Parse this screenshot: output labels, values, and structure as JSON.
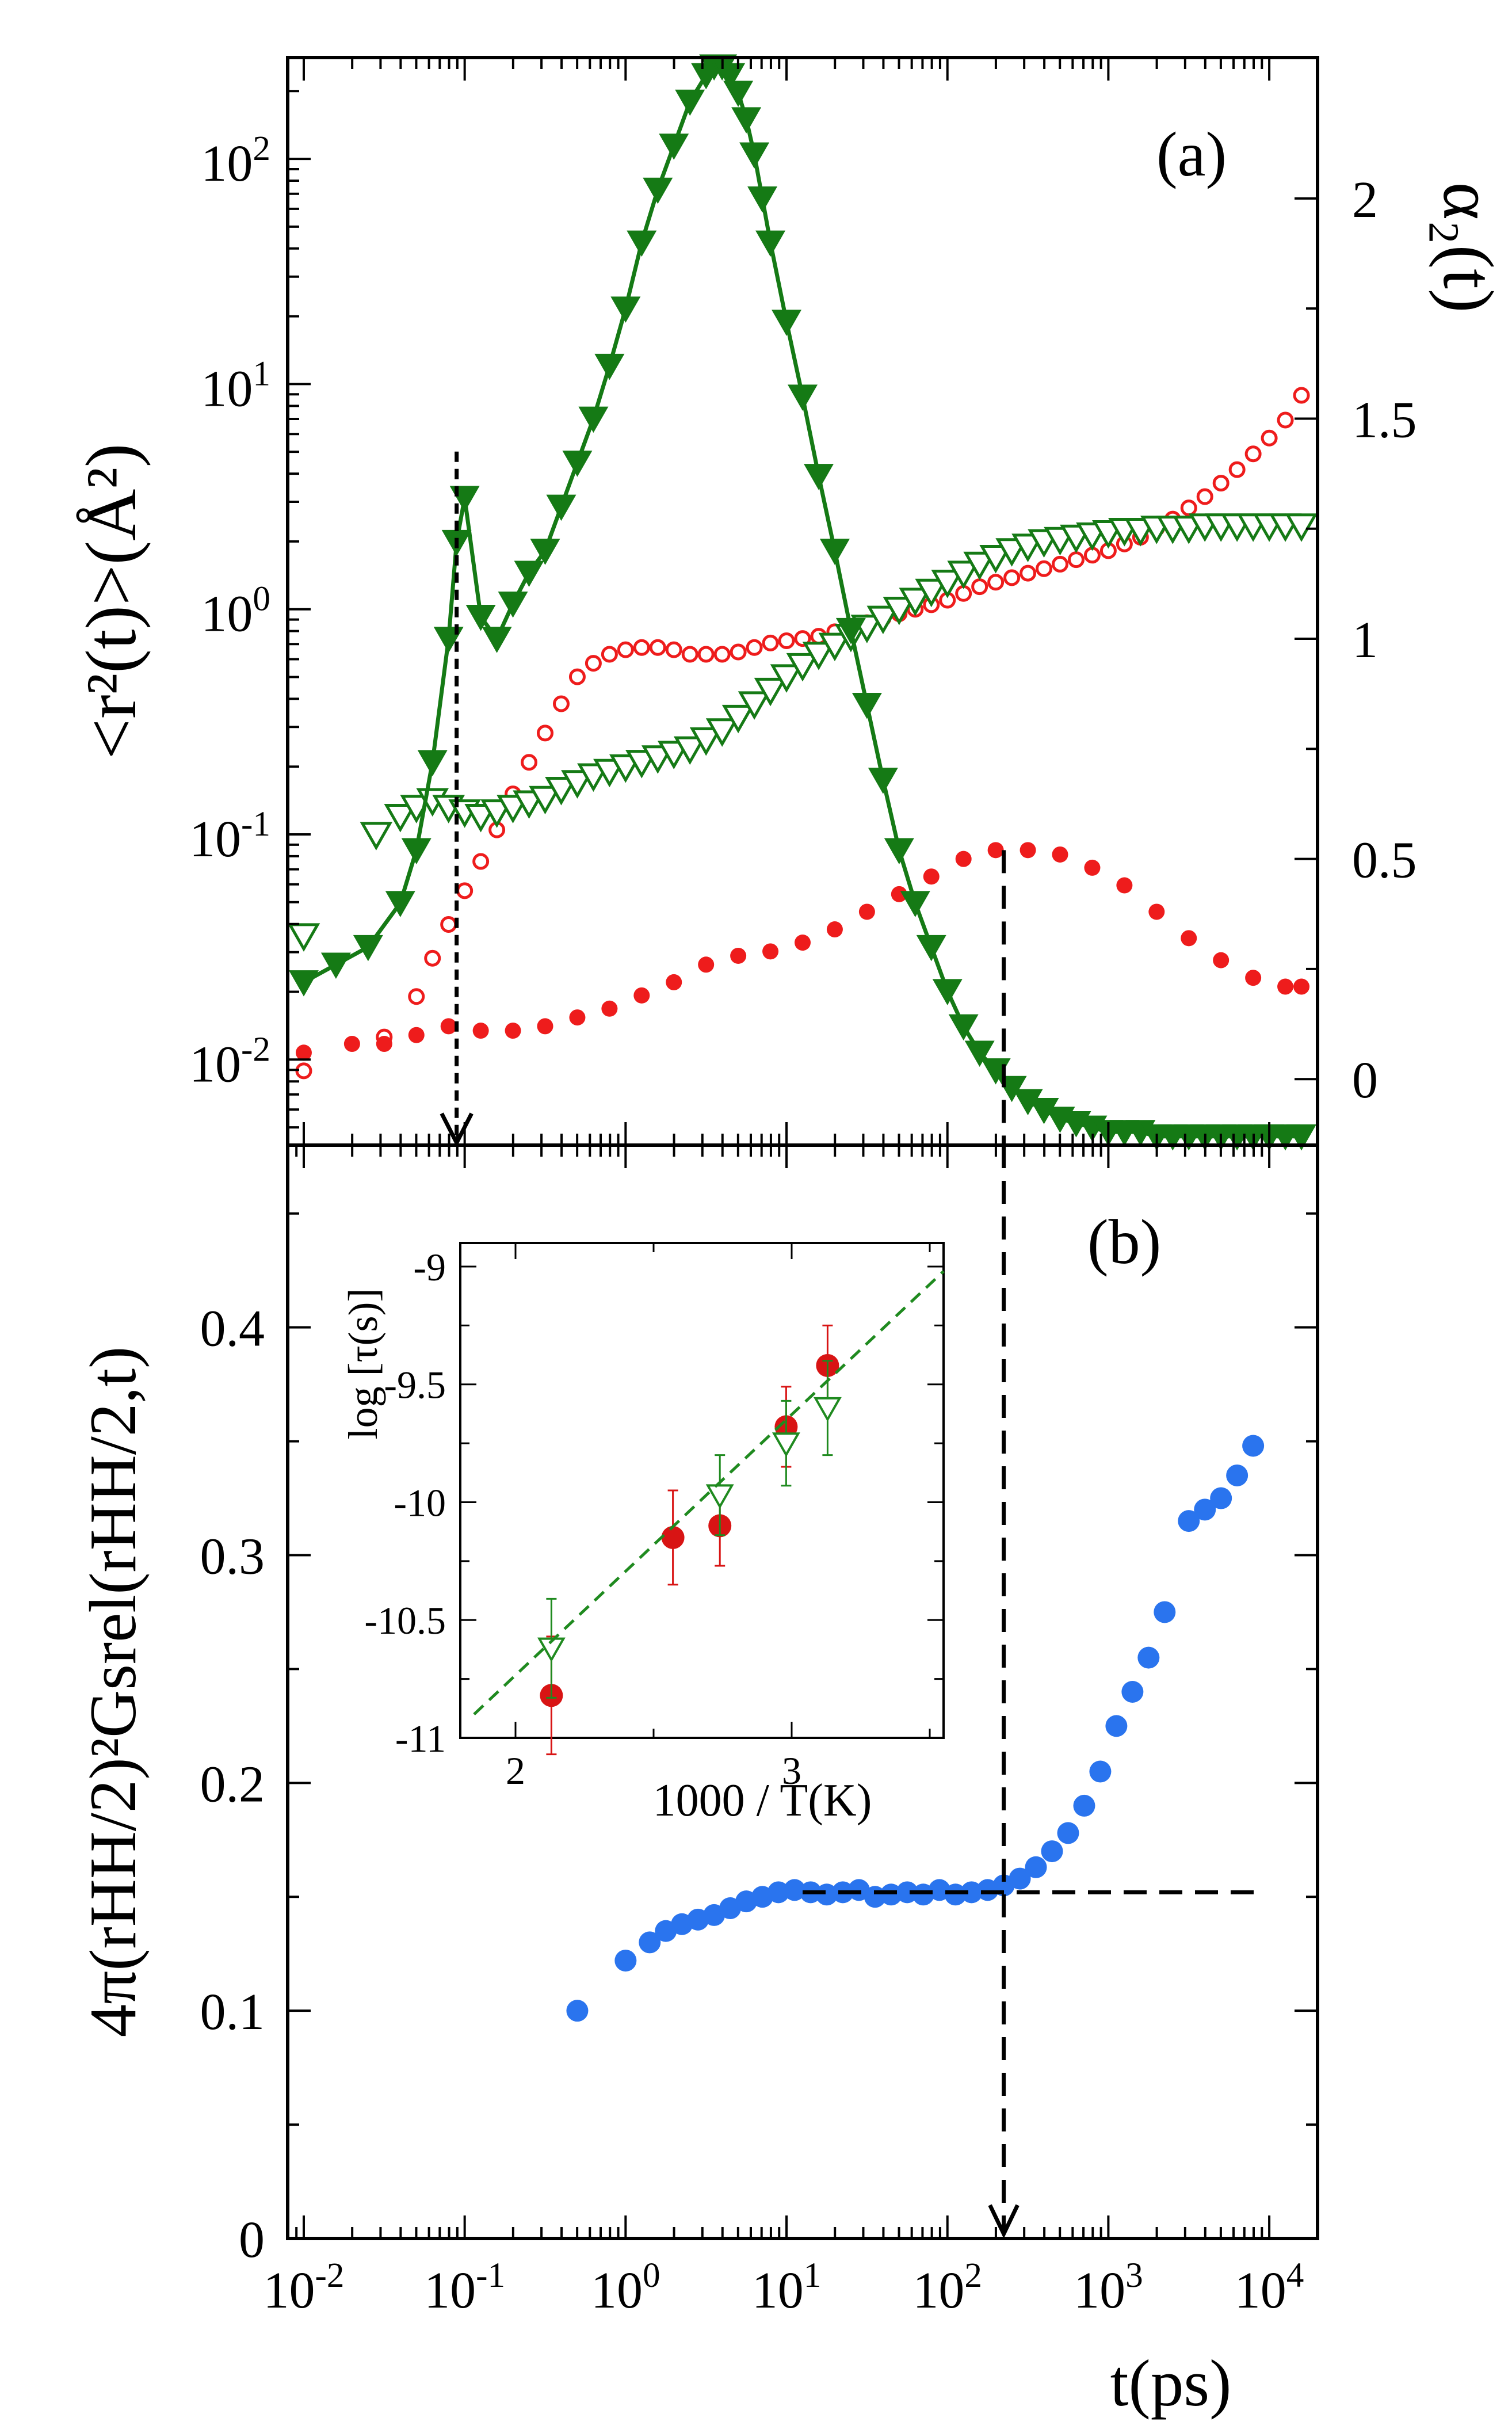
{
  "colors": {
    "red": "#ee1c1c",
    "green": "#157a15",
    "blue": "#2a74ee",
    "black": "#000000",
    "inset_red": "#d81414",
    "inset_green": "#1f8a1f"
  },
  "chart_data": [
    {
      "id": "a",
      "type": "scatter",
      "panel_label": "(a)",
      "xscale": "log",
      "xlim_log10": [
        -2.1,
        4.3
      ],
      "ylabel_left": "<r²(t)>(Å²)",
      "yscale_left": "log",
      "ylim_left_log10": [
        -2.38,
        2.45
      ],
      "ytick_labels_left": [
        "10-2",
        "10-1",
        "100",
        "101",
        "102"
      ],
      "ylabel_right": "α₂(t)",
      "ylim_right": [
        -0.15,
        2.32
      ],
      "ytick_labels_right": [
        "0",
        "0.5",
        "1",
        "1.5",
        "2"
      ],
      "series": [
        {
          "name": "MSD (open red circles)",
          "axis": "left",
          "marker": "open-circle",
          "color": "#ee1c1c",
          "x_log10": [
            -2.0,
            -1.5,
            -1.3,
            -1.2,
            -1.1,
            -1.0,
            -0.9,
            -0.8,
            -0.7,
            -0.6,
            -0.5,
            -0.4,
            -0.3,
            -0.2,
            -0.1,
            0.0,
            0.1,
            0.2,
            0.3,
            0.4,
            0.5,
            0.6,
            0.7,
            0.8,
            0.9,
            1.0,
            1.1,
            1.2,
            1.3,
            1.4,
            1.5,
            1.6,
            1.7,
            1.8,
            1.9,
            2.0,
            2.1,
            2.2,
            2.3,
            2.4,
            2.5,
            2.6,
            2.7,
            2.8,
            2.9,
            3.0,
            3.1,
            3.2,
            3.3,
            3.4,
            3.5,
            3.6,
            3.7,
            3.8,
            3.9,
            4.0,
            4.1,
            4.2
          ],
          "y_log10": [
            -2.05,
            -1.9,
            -1.72,
            -1.55,
            -1.4,
            -1.25,
            -1.12,
            -0.98,
            -0.82,
            -0.68,
            -0.55,
            -0.42,
            -0.3,
            -0.24,
            -0.2,
            -0.18,
            -0.17,
            -0.17,
            -0.18,
            -0.2,
            -0.2,
            -0.2,
            -0.19,
            -0.17,
            -0.15,
            -0.14,
            -0.13,
            -0.12,
            -0.1,
            -0.08,
            -0.06,
            -0.04,
            -0.02,
            0.0,
            0.02,
            0.04,
            0.07,
            0.1,
            0.12,
            0.14,
            0.16,
            0.18,
            0.2,
            0.22,
            0.24,
            0.26,
            0.29,
            0.32,
            0.36,
            0.4,
            0.45,
            0.5,
            0.56,
            0.62,
            0.69,
            0.76,
            0.84,
            0.95
          ]
        },
        {
          "name": "alpha2 (filled red circles)",
          "axis": "right",
          "marker": "filled-circle",
          "color": "#ee1c1c",
          "x_log10": [
            -2.0,
            -1.7,
            -1.5,
            -1.3,
            -1.1,
            -0.9,
            -0.7,
            -0.5,
            -0.3,
            -0.1,
            0.1,
            0.3,
            0.5,
            0.7,
            0.9,
            1.1,
            1.3,
            1.5,
            1.7,
            1.9,
            2.1,
            2.3,
            2.5,
            2.7,
            2.9,
            3.1,
            3.3,
            3.5,
            3.7,
            3.9,
            4.1,
            4.2
          ],
          "y": [
            0.06,
            0.08,
            0.08,
            0.1,
            0.12,
            0.11,
            0.11,
            0.12,
            0.14,
            0.16,
            0.19,
            0.22,
            0.26,
            0.28,
            0.29,
            0.31,
            0.34,
            0.38,
            0.42,
            0.46,
            0.5,
            0.52,
            0.52,
            0.51,
            0.48,
            0.44,
            0.38,
            0.32,
            0.27,
            0.23,
            0.21,
            0.21
          ]
        },
        {
          "name": "MSD (open green triangles)",
          "axis": "left",
          "marker": "open-triangle-down",
          "color": "#157a15",
          "x_log10": [
            -2.0,
            -1.55,
            -1.4,
            -1.3,
            -1.2,
            -1.1,
            -1.0,
            -0.9,
            -0.8,
            -0.7,
            -0.6,
            -0.5,
            -0.4,
            -0.3,
            -0.2,
            -0.1,
            0.0,
            0.1,
            0.2,
            0.3,
            0.4,
            0.5,
            0.6,
            0.7,
            0.8,
            0.9,
            1.0,
            1.1,
            1.2,
            1.3,
            1.4,
            1.5,
            1.6,
            1.7,
            1.8,
            1.9,
            2.0,
            2.1,
            2.2,
            2.3,
            2.4,
            2.5,
            2.6,
            2.7,
            2.8,
            2.9,
            3.0,
            3.1,
            3.2,
            3.3,
            3.4,
            3.5,
            3.6,
            3.7,
            3.8,
            3.9,
            4.0,
            4.1,
            4.2
          ],
          "y_log10": [
            -1.45,
            -1.0,
            -0.92,
            -0.88,
            -0.85,
            -0.88,
            -0.9,
            -0.92,
            -0.9,
            -0.88,
            -0.86,
            -0.84,
            -0.8,
            -0.77,
            -0.74,
            -0.72,
            -0.7,
            -0.68,
            -0.66,
            -0.64,
            -0.62,
            -0.58,
            -0.54,
            -0.48,
            -0.42,
            -0.36,
            -0.3,
            -0.25,
            -0.2,
            -0.16,
            -0.12,
            -0.08,
            -0.04,
            0.0,
            0.04,
            0.08,
            0.12,
            0.16,
            0.2,
            0.23,
            0.26,
            0.28,
            0.3,
            0.31,
            0.32,
            0.33,
            0.34,
            0.35,
            0.35,
            0.36,
            0.36,
            0.36,
            0.37,
            0.37,
            0.37,
            0.37,
            0.37,
            0.37,
            0.37
          ]
        },
        {
          "name": "alpha2 (filled green triangles, connected)",
          "axis": "right",
          "marker": "filled-triangle-down",
          "color": "#157a15",
          "line": true,
          "x_log10": [
            -2.0,
            -1.8,
            -1.6,
            -1.4,
            -1.3,
            -1.2,
            -1.1,
            -1.05,
            -1.0,
            -0.9,
            -0.8,
            -0.7,
            -0.6,
            -0.5,
            -0.4,
            -0.3,
            -0.2,
            -0.1,
            0.0,
            0.1,
            0.2,
            0.3,
            0.4,
            0.5,
            0.55,
            0.6,
            0.65,
            0.7,
            0.75,
            0.8,
            0.85,
            0.9,
            1.0,
            1.1,
            1.2,
            1.3,
            1.4,
            1.5,
            1.6,
            1.7,
            1.8,
            1.9,
            2.0,
            2.1,
            2.2,
            2.3,
            2.4,
            2.5,
            2.6,
            2.7,
            2.8,
            2.9,
            3.0,
            3.1,
            3.2,
            3.3,
            3.4,
            3.5,
            3.6,
            3.7,
            3.8,
            3.9,
            4.0,
            4.1,
            4.2
          ],
          "y": [
            0.22,
            0.26,
            0.3,
            0.4,
            0.52,
            0.72,
            1.0,
            1.22,
            1.32,
            1.05,
            1.0,
            1.08,
            1.15,
            1.2,
            1.3,
            1.4,
            1.5,
            1.62,
            1.75,
            1.9,
            2.02,
            2.12,
            2.22,
            2.28,
            2.3,
            2.3,
            2.28,
            2.24,
            2.18,
            2.1,
            2.0,
            1.9,
            1.72,
            1.55,
            1.37,
            1.2,
            1.02,
            0.85,
            0.68,
            0.52,
            0.4,
            0.3,
            0.2,
            0.12,
            0.06,
            0.02,
            -0.02,
            -0.05,
            -0.07,
            -0.09,
            -0.1,
            -0.11,
            -0.12,
            -0.12,
            -0.12,
            -0.13,
            -0.13,
            -0.13,
            -0.13,
            -0.13,
            -0.13,
            -0.13,
            -0.13,
            -0.13,
            -0.13
          ]
        }
      ],
      "annotations": [
        {
          "type": "vertical-dashed-arrow",
          "x_log10": -1.05,
          "from_y_log10": 0.7,
          "to_y_log10": -2.38,
          "style": "short-dash"
        },
        {
          "type": "vertical-dashed-line",
          "x_log10": 2.35
        }
      ]
    },
    {
      "id": "b",
      "type": "scatter",
      "panel_label": "(b)",
      "xscale": "log",
      "xlim_log10": [
        -2.1,
        4.3
      ],
      "xlabel": "t(ps)",
      "xtick_labels": [
        "10-2",
        "10-1",
        "100",
        "101",
        "102",
        "103",
        "104"
      ],
      "ylabel": "4π(rHH/2)²Gsrel(rHH/2,t)",
      "ylim": [
        0.0,
        0.48
      ],
      "ytick_labels": [
        "0",
        "0.1",
        "0.2",
        "0.3",
        "0.4"
      ],
      "series": [
        {
          "name": "Gs (filled blue circles)",
          "marker": "filled-circle",
          "color": "#2a74ee",
          "x_log10": [
            -0.3,
            0.0,
            0.15,
            0.25,
            0.35,
            0.45,
            0.55,
            0.65,
            0.75,
            0.85,
            0.95,
            1.05,
            1.15,
            1.25,
            1.35,
            1.45,
            1.55,
            1.65,
            1.75,
            1.85,
            1.95,
            2.05,
            2.15,
            2.25,
            2.35,
            2.45,
            2.55,
            2.65,
            2.75,
            2.85,
            2.95,
            3.05,
            3.15,
            3.25,
            3.35,
            3.5,
            3.6,
            3.7,
            3.8,
            3.9
          ],
          "y": [
            0.1,
            0.122,
            0.13,
            0.135,
            0.138,
            0.14,
            0.142,
            0.145,
            0.148,
            0.15,
            0.152,
            0.153,
            0.152,
            0.151,
            0.152,
            0.153,
            0.15,
            0.151,
            0.152,
            0.151,
            0.153,
            0.151,
            0.152,
            0.153,
            0.155,
            0.158,
            0.163,
            0.17,
            0.178,
            0.19,
            0.205,
            0.225,
            0.24,
            0.255,
            0.275,
            0.315,
            0.32,
            0.325,
            0.335,
            0.348
          ]
        }
      ],
      "annotations": [
        {
          "type": "horizontal-dashed-line",
          "y": 0.152,
          "from_x_log10": 1.1,
          "to_x_log10": 3.95
        },
        {
          "type": "vertical-dashed-arrow",
          "x_log10": 2.35,
          "from_y": 0.48,
          "to_y": 0.0
        }
      ]
    },
    {
      "id": "inset",
      "type": "scatter",
      "xlabel": "1000 / T(K)",
      "ylabel": "log [τ(s)]",
      "xlim": [
        1.8,
        3.55
      ],
      "ylim": [
        -11.0,
        -8.9
      ],
      "xtick_labels": [
        "2",
        "3"
      ],
      "ytick_labels": [
        "-9",
        "-9.5",
        "-10",
        "-10.5",
        "-11"
      ],
      "series": [
        {
          "name": "red filled circles with error bars",
          "marker": "filled-circle",
          "color": "#d81414",
          "x": [
            2.13,
            2.57,
            2.74,
            2.98,
            3.13
          ],
          "y": [
            -10.82,
            -10.15,
            -10.1,
            -9.68,
            -9.42
          ],
          "yerr": [
            0.25,
            0.2,
            0.17,
            0.17,
            0.17
          ]
        },
        {
          "name": "green open triangles with error bars",
          "marker": "open-triangle-down",
          "color": "#1f8a1f",
          "x": [
            2.13,
            2.74,
            2.98,
            3.13
          ],
          "y": [
            -10.62,
            -9.97,
            -9.75,
            -9.6
          ],
          "yerr": [
            0.21,
            0.17,
            0.18,
            0.2
          ]
        },
        {
          "name": "linear fit (dashed green)",
          "type": "line",
          "style": "dashed",
          "color": "#1f8a1f",
          "x": [
            1.85,
            3.55
          ],
          "y": [
            -10.9,
            -9.02
          ]
        }
      ]
    }
  ]
}
